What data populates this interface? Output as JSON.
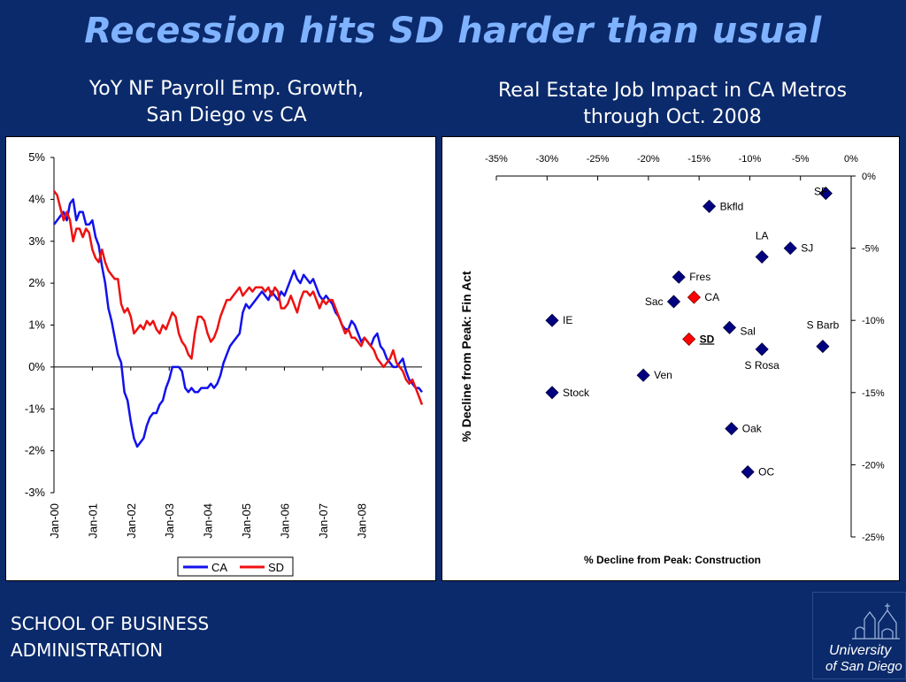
{
  "slide": {
    "title": "Recession hits SD harder than usual",
    "left_title_line1": "YoY NF Payroll Emp. Growth,",
    "left_title_line2": "San Diego vs CA",
    "right_title_line1": "Real Estate Job Impact in CA Metros",
    "right_title_line2": "through Oct. 2008",
    "footer_line1": "SCHOOL OF BUSINESS",
    "footer_line2": "ADMINISTRATION",
    "logo_line1": "University",
    "logo_line2": "of San Diego"
  },
  "colors": {
    "background": "#0b2a6b",
    "title": "#7fb2ff",
    "ca": "#1111ee",
    "sd": "#ee1111",
    "marker": "#000080",
    "highlight": "#ff0000"
  },
  "chart_data": [
    {
      "type": "line",
      "ylim": [
        -3,
        5
      ],
      "yticks": [
        "5%",
        "4%",
        "3%",
        "2%",
        "1%",
        "0%",
        "-1%",
        "-2%",
        "-3%"
      ],
      "xticks": [
        "Jan-00",
        "Jan-01",
        "Jan-02",
        "Jan-03",
        "Jan-04",
        "Jan-05",
        "Jan-06",
        "Jan-07",
        "Jan-08"
      ],
      "x_start": "2000-01",
      "legend": [
        "CA",
        "SD"
      ],
      "legend_position": "bottom",
      "series": [
        {
          "name": "CA",
          "color": "#1111ee",
          "values": [
            3.4,
            3.5,
            3.6,
            3.7,
            3.5,
            3.9,
            4.0,
            3.5,
            3.7,
            3.7,
            3.4,
            3.4,
            3.5,
            3.1,
            2.9,
            2.4,
            2.0,
            1.4,
            1.1,
            0.7,
            0.3,
            0.1,
            -0.6,
            -0.8,
            -1.3,
            -1.7,
            -1.9,
            -1.8,
            -1.7,
            -1.4,
            -1.2,
            -1.1,
            -1.1,
            -0.9,
            -0.8,
            -0.5,
            -0.3,
            0.0,
            0.0,
            0.0,
            -0.1,
            -0.5,
            -0.6,
            -0.5,
            -0.6,
            -0.6,
            -0.5,
            -0.5,
            -0.5,
            -0.4,
            -0.5,
            -0.4,
            -0.2,
            0.1,
            0.3,
            0.5,
            0.6,
            0.7,
            0.8,
            1.3,
            1.5,
            1.4,
            1.5,
            1.6,
            1.7,
            1.8,
            1.7,
            1.6,
            1.8,
            1.7,
            1.6,
            1.8,
            1.7,
            1.9,
            2.1,
            2.3,
            2.1,
            2.0,
            2.2,
            2.1,
            2.0,
            2.1,
            1.9,
            1.7,
            1.6,
            1.7,
            1.6,
            1.5,
            1.3,
            1.2,
            1.0,
            0.9,
            0.9,
            1.1,
            1.0,
            0.8,
            0.6,
            0.7,
            0.6,
            0.5,
            0.7,
            0.8,
            0.5,
            0.4,
            0.2,
            0.1,
            0.0,
            0.0,
            0.1,
            0.2,
            -0.1,
            -0.3,
            -0.4,
            -0.5,
            -0.5,
            -0.6
          ]
        },
        {
          "name": "SD",
          "color": "#ee1111",
          "values": [
            4.2,
            4.1,
            3.8,
            3.5,
            3.7,
            3.5,
            3.0,
            3.3,
            3.3,
            3.1,
            3.3,
            3.2,
            2.8,
            2.6,
            2.5,
            2.8,
            2.5,
            2.3,
            2.2,
            2.1,
            2.1,
            1.5,
            1.3,
            1.4,
            1.2,
            0.8,
            0.9,
            1.0,
            0.9,
            1.1,
            1.0,
            1.1,
            0.9,
            0.8,
            1.0,
            0.9,
            1.1,
            1.3,
            1.2,
            0.8,
            0.6,
            0.5,
            0.3,
            0.2,
            0.8,
            1.2,
            1.2,
            1.1,
            0.8,
            0.6,
            0.7,
            0.9,
            1.2,
            1.4,
            1.6,
            1.6,
            1.7,
            1.8,
            1.9,
            1.7,
            1.8,
            1.9,
            1.8,
            1.9,
            1.9,
            1.9,
            1.8,
            1.9,
            1.7,
            1.9,
            1.8,
            1.4,
            1.4,
            1.5,
            1.7,
            1.5,
            1.3,
            1.6,
            1.8,
            1.8,
            1.7,
            1.8,
            1.6,
            1.4,
            1.6,
            1.5,
            1.6,
            1.6,
            1.4,
            1.2,
            1.0,
            0.8,
            0.9,
            0.7,
            0.7,
            0.6,
            0.5,
            0.7,
            0.6,
            0.5,
            0.4,
            0.2,
            0.1,
            0.0,
            0.1,
            0.2,
            0.4,
            0.1,
            0.0,
            -0.1,
            -0.3,
            -0.4,
            -0.3,
            -0.5,
            -0.7,
            -0.9
          ]
        }
      ]
    },
    {
      "type": "scatter",
      "xlabel": "% Decline from Peak: Construction",
      "ylabel": "% Decline from Peak: Fin Act",
      "xlim": [
        -35,
        0
      ],
      "ylim": [
        -25,
        0
      ],
      "xticks": [
        "-35%",
        "-30%",
        "-25%",
        "-20%",
        "-15%",
        "-10%",
        "-5%",
        "0%"
      ],
      "yticks": [
        "0%",
        "-5%",
        "-10%",
        "-15%",
        "-20%",
        "-25%"
      ],
      "points": [
        {
          "label": "SF",
          "x": -2.5,
          "y": -1.2,
          "highlight": false,
          "anchor": "left-above"
        },
        {
          "label": "Bkfld",
          "x": -14.0,
          "y": -2.1,
          "highlight": false,
          "anchor": "right"
        },
        {
          "label": "LA",
          "x": -8.8,
          "y": -5.6,
          "highlight": false,
          "anchor": "above"
        },
        {
          "label": "SJ",
          "x": -6.0,
          "y": -5.0,
          "highlight": false,
          "anchor": "right"
        },
        {
          "label": "Fres",
          "x": -17.0,
          "y": -7.0,
          "highlight": false,
          "anchor": "right"
        },
        {
          "label": "CA",
          "x": -15.5,
          "y": -8.4,
          "highlight": true,
          "anchor": "right"
        },
        {
          "label": "Sac",
          "x": -17.5,
          "y": -8.7,
          "highlight": false,
          "anchor": "left"
        },
        {
          "label": "IE",
          "x": -29.5,
          "y": -10.0,
          "highlight": false,
          "anchor": "right"
        },
        {
          "label": "Sal",
          "x": -12.0,
          "y": -10.5,
          "highlight": false,
          "anchor": "right-below"
        },
        {
          "label": "SD",
          "x": -16.0,
          "y": -11.3,
          "highlight": true,
          "anchor": "right"
        },
        {
          "label": "S Barb",
          "x": -2.8,
          "y": -11.8,
          "highlight": false,
          "anchor": "above"
        },
        {
          "label": "S Rosa",
          "x": -8.8,
          "y": -12.0,
          "highlight": false,
          "anchor": "below"
        },
        {
          "label": "Ven",
          "x": -20.5,
          "y": -13.8,
          "highlight": false,
          "anchor": "right"
        },
        {
          "label": "Stock",
          "x": -29.5,
          "y": -15.0,
          "highlight": false,
          "anchor": "right"
        },
        {
          "label": "Oak",
          "x": -11.8,
          "y": -17.5,
          "highlight": false,
          "anchor": "right"
        },
        {
          "label": "OC",
          "x": -10.2,
          "y": -20.5,
          "highlight": false,
          "anchor": "right"
        }
      ]
    }
  ]
}
